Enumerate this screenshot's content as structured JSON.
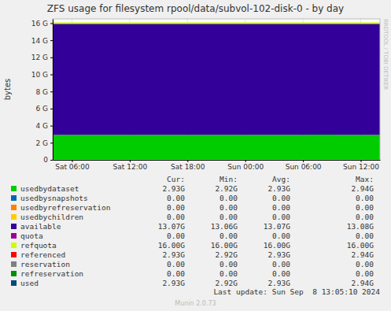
{
  "chart_data": {
    "type": "area",
    "title": "ZFS usage for filesystem rpool/data/subvol-102-disk-0 - by day",
    "y_label": "bytes",
    "stacked": true,
    "grid": true,
    "categories": [
      null,
      null,
      "Sat 06:00",
      null,
      null,
      null,
      null,
      null,
      "Sat 12:00",
      null,
      null,
      null,
      null,
      null,
      "Sat 18:00",
      null,
      null,
      null,
      null,
      null,
      "Sun 00:00",
      null,
      null,
      null,
      null,
      null,
      "Sun 06:00",
      null,
      null,
      null,
      null,
      null,
      "Sun 12:00",
      null,
      null
    ],
    "series": [
      {
        "name": "usedbydataset",
        "color": "#00cc00",
        "type": "area",
        "values": [
          2.92,
          2.92,
          2.92,
          2.93,
          2.93,
          2.93,
          2.93,
          2.93,
          2.93,
          2.93,
          2.93,
          2.93,
          2.93,
          2.93,
          2.93,
          2.93,
          2.93,
          2.93,
          2.93,
          2.93,
          2.93,
          2.93,
          2.93,
          2.93,
          2.93,
          2.93,
          2.93,
          2.94,
          2.94,
          2.94,
          2.93,
          2.93,
          2.93,
          2.93,
          2.93
        ]
      },
      {
        "name": "available",
        "color": "#330099",
        "type": "area",
        "values": [
          13.08,
          13.08,
          13.08,
          13.07,
          13.07,
          13.07,
          13.07,
          13.07,
          13.07,
          13.07,
          13.07,
          13.07,
          13.07,
          13.07,
          13.07,
          13.07,
          13.07,
          13.07,
          13.07,
          13.07,
          13.07,
          13.07,
          13.07,
          13.07,
          13.07,
          13.07,
          13.07,
          13.06,
          13.06,
          13.06,
          13.07,
          13.07,
          13.07,
          13.07,
          13.07
        ]
      },
      {
        "name": "refquota",
        "color": "#ccff00",
        "type": "line",
        "values": [
          16,
          16,
          16,
          16,
          16,
          16,
          16,
          16,
          16,
          16,
          16,
          16,
          16,
          16,
          16,
          16,
          16,
          16,
          16,
          16,
          16,
          16,
          16,
          16,
          16,
          16,
          16,
          16,
          16,
          16,
          16,
          16,
          16,
          16,
          16
        ]
      }
    ],
    "ylim": [
      0,
      16.5
    ],
    "yticks": [
      0,
      {
        "value": 2,
        "label": "2 G"
      },
      {
        "value": 4,
        "label": "4 G"
      },
      {
        "value": 6,
        "label": "6 G"
      },
      {
        "value": 8,
        "label": "8 G"
      },
      {
        "value": 10,
        "label": "10 G"
      },
      {
        "value": 12,
        "label": "12 G"
      },
      {
        "value": 14,
        "label": "14 G"
      },
      {
        "value": 16,
        "label": "16 G"
      }
    ]
  },
  "legend_table": {
    "columns": [
      "Cur:",
      "Min:",
      "Avg:",
      "Max:"
    ],
    "rows": [
      {
        "name": "usedbydataset",
        "color": "#00cc00",
        "cur": "2.93G",
        "min": "2.92G",
        "avg": "2.93G",
        "max": "2.94G"
      },
      {
        "name": "usedbysnapshots",
        "color": "#0066b3",
        "cur": "0.00",
        "min": "0.00",
        "avg": "0.00",
        "max": "0.00"
      },
      {
        "name": "usedbyrefreservation",
        "color": "#ff8000",
        "cur": "0.00",
        "min": "0.00",
        "avg": "0.00",
        "max": "0.00"
      },
      {
        "name": "usedbychildren",
        "color": "#ffcc00",
        "cur": "0.00",
        "min": "0.00",
        "avg": "0.00",
        "max": "0.00"
      },
      {
        "name": "available",
        "color": "#330099",
        "cur": "13.07G",
        "min": "13.06G",
        "avg": "13.07G",
        "max": "13.08G"
      },
      {
        "name": "quota",
        "color": "#990099",
        "cur": "0.00",
        "min": "0.00",
        "avg": "0.00",
        "max": "0.00"
      },
      {
        "name": "refquota",
        "color": "#ccff00",
        "cur": "16.00G",
        "min": "16.00G",
        "avg": "16.00G",
        "max": "16.00G"
      },
      {
        "name": "referenced",
        "color": "#ff0000",
        "cur": "2.93G",
        "min": "2.92G",
        "avg": "2.93G",
        "max": "2.94G"
      },
      {
        "name": "reservation",
        "color": "#808080",
        "cur": "0.00",
        "min": "0.00",
        "avg": "0.00",
        "max": "0.00"
      },
      {
        "name": "refreservation",
        "color": "#008f00",
        "cur": "0.00",
        "min": "0.00",
        "avg": "0.00",
        "max": "0.00"
      },
      {
        "name": "used",
        "color": "#00487d",
        "cur": "2.93G",
        "min": "2.92G",
        "avg": "2.93G",
        "max": "2.94G"
      }
    ]
  },
  "footer": {
    "last_update": "Last update: Sun Sep  8 13:05:10 2024",
    "version": "Munin 2.0.73",
    "watermark": "RRDTOOL / TOBI OETIKER"
  }
}
